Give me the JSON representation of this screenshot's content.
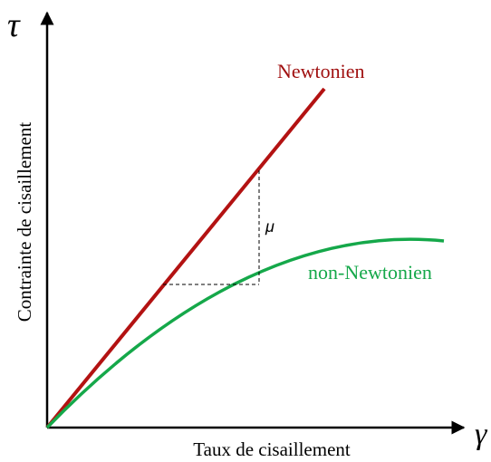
{
  "axes": {
    "y_symbol": "τ",
    "x_symbol": "γ̇",
    "y_label": "Contrainte de cisaillement",
    "x_label": "Taux de cisaillement"
  },
  "curves": {
    "newtonian": "Newtonien",
    "non_newtonian": "non-Newtonien"
  },
  "annotation": "μ"
}
